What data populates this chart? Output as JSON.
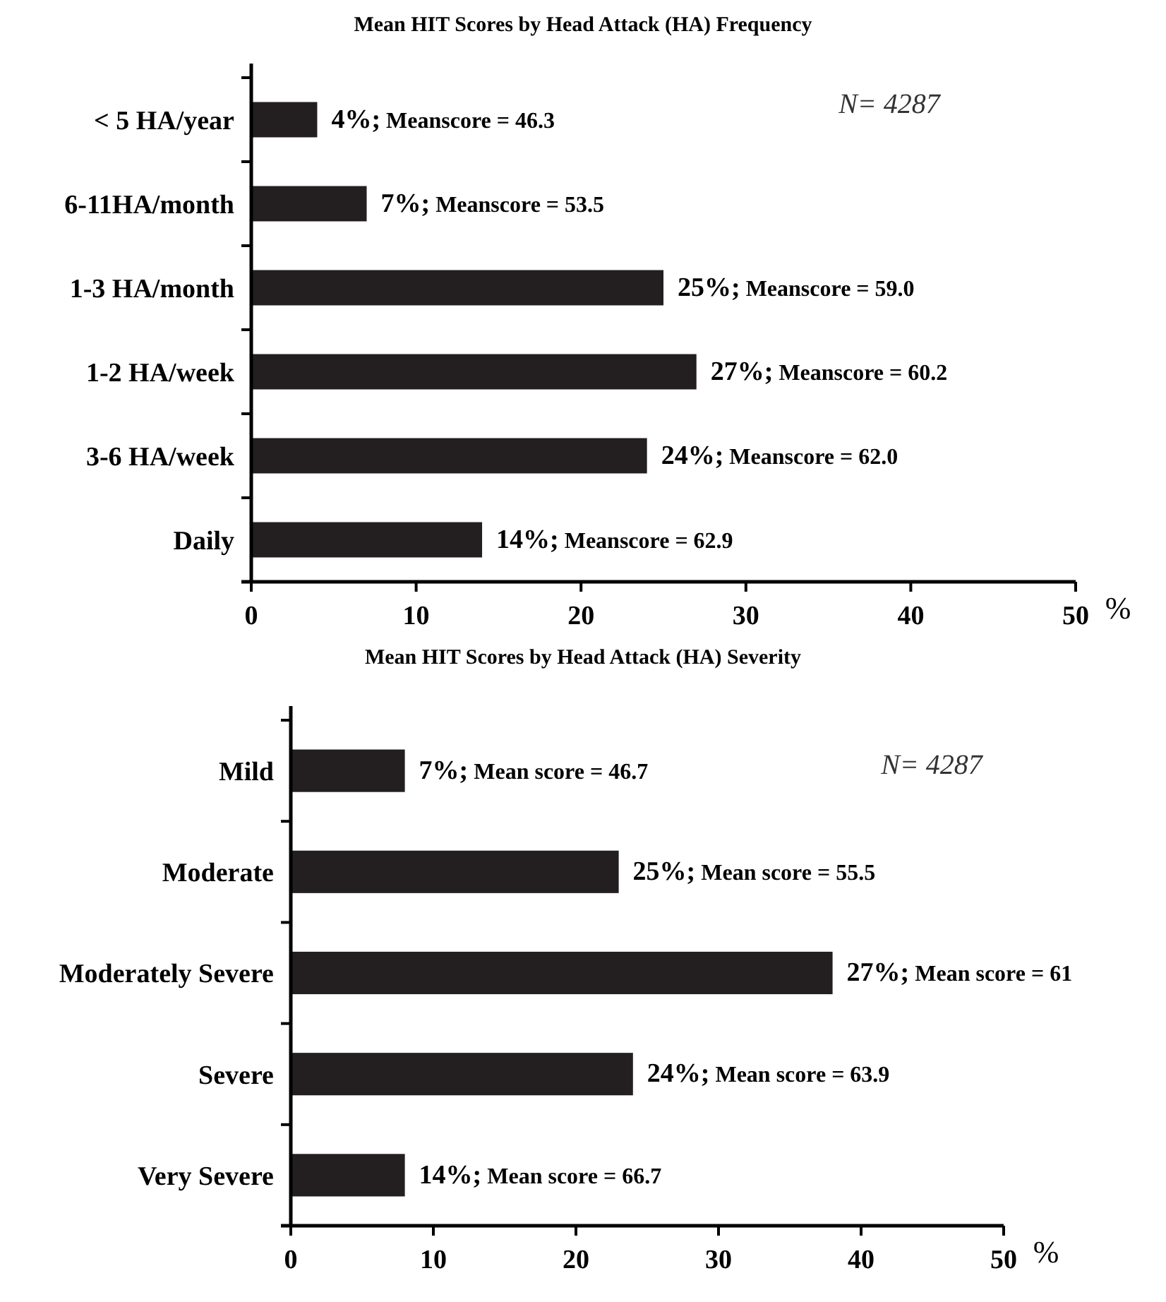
{
  "chart_data": [
    {
      "type": "bar",
      "orientation": "horizontal",
      "title": "Mean HIT Scores by Head Attack (HA) Frequency",
      "xlabel": "%",
      "categories": [
        "< 5 HA/year",
        "6-11HA/month",
        "1-3 HA/month",
        "1-2 HA/week",
        "3-6 HA/week",
        "Daily"
      ],
      "values": [
        4,
        7,
        25,
        27,
        24,
        14
      ],
      "color": "#231f20",
      "value_labels": [
        "4%; Meanscore = 46.3",
        "7%; Meanscore = 53.5",
        "25%; Meanscore = 59.0",
        "27%; Meanscore = 60.2",
        "24%; Meanscore = 62.0",
        "14%; Meanscore = 62.9"
      ],
      "xlim": [
        0,
        50
      ],
      "xticks": [
        0,
        10,
        20,
        30,
        40,
        50
      ],
      "annotations": [
        "N= 4287"
      ]
    },
    {
      "type": "bar",
      "orientation": "horizontal",
      "title": "Mean HIT Scores by Head Attack (HA) Severity",
      "xlabel": "%",
      "categories": [
        "Mild",
        "Moderate",
        "Moderately Severe",
        "Severe",
        "Very Severe"
      ],
      "values": [
        8,
        23,
        38,
        24,
        8
      ],
      "color": "#231f20",
      "xlim": [
        0,
        50
      ],
      "xticks": [
        0,
        10,
        20,
        30,
        40,
        50
      ],
      "annotations": [
        "N= 4287",
        {
          "text": "7%; Mean score = 46.7",
          "x": 8,
          "y": "Mild"
        },
        {
          "text": "25%; Mean score = 55.5",
          "x": 23,
          "y": "Moderate"
        },
        {
          "text": "27%; Mean score = 61",
          "x": 38,
          "y": "Moderately Severe"
        },
        {
          "text": "24%; Mean score = 63.9",
          "x": 24,
          "y": "Severe"
        },
        {
          "text": "14%; Mean score = 66.7",
          "x": 8,
          "y": "Very Severe"
        }
      ]
    }
  ]
}
